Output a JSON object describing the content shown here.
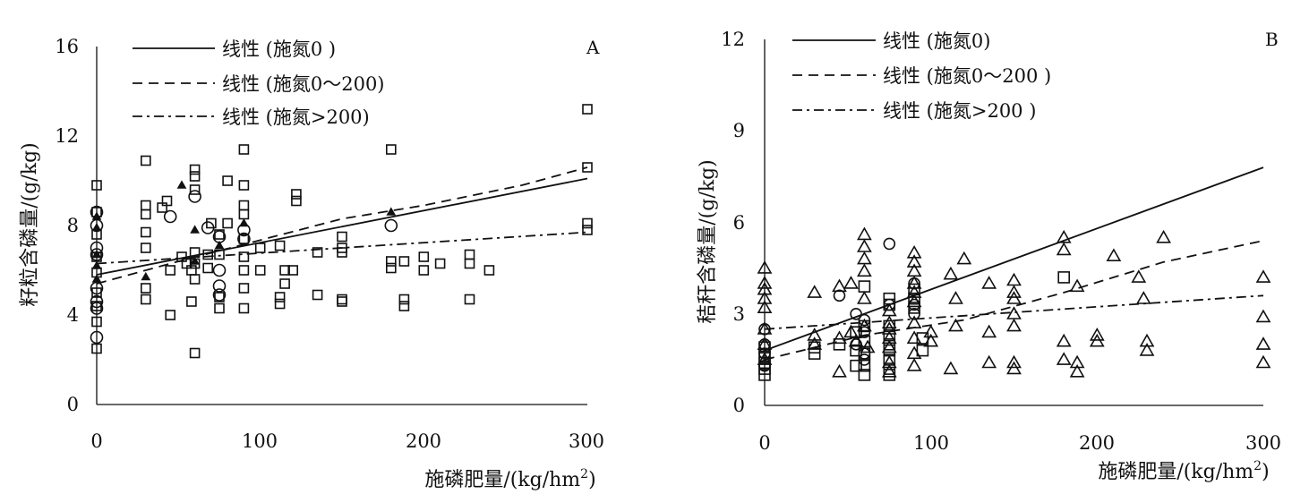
{
  "chart_data": [
    {
      "type": "scatter",
      "panel_label": "A",
      "ylabel": "籽粒含磷量/(g/kg)",
      "xlabel": "施磷肥量/(kg/hm",
      "xlabel_sup": "2",
      "xlabel_tail": ")",
      "xlim": [
        0,
        300
      ],
      "ylim": [
        0,
        16
      ],
      "xticks": [
        0,
        100,
        200,
        300
      ],
      "yticks": [
        0,
        4,
        8,
        12,
        16
      ],
      "grid": false,
      "legend_position": "top-left",
      "series": [
        {
          "name": "线性 (施氮0 )",
          "marker": "circle",
          "line": "solid",
          "line_points": [
            [
              0,
              5.8
            ],
            [
              300,
              10.1
            ]
          ],
          "points": [
            [
              0,
              8.6
            ],
            [
              0,
              8.0
            ],
            [
              0,
              7.0
            ],
            [
              0,
              6.7
            ],
            [
              0,
              5.2
            ],
            [
              0,
              4.6
            ],
            [
              0,
              4.3
            ],
            [
              0,
              3.0
            ],
            [
              45,
              8.4
            ],
            [
              60,
              9.3
            ],
            [
              68,
              7.9
            ],
            [
              75,
              7.5
            ],
            [
              75,
              6.0
            ],
            [
              75,
              5.3
            ],
            [
              75,
              4.9
            ],
            [
              90,
              7.8
            ],
            [
              90,
              7.4
            ],
            [
              180,
              8.0
            ]
          ]
        },
        {
          "name": "线性 (施氮0～200)",
          "marker": "square",
          "line": "dashed",
          "line_points": [
            [
              0,
              5.4
            ],
            [
              45,
              6.3
            ],
            [
              150,
              8.3
            ],
            [
              200,
              8.9
            ],
            [
              260,
              9.8
            ],
            [
              300,
              10.6
            ]
          ],
          "points": [
            [
              0,
              9.8
            ],
            [
              0,
              8.6
            ],
            [
              0,
              7.6
            ],
            [
              0,
              6.6
            ],
            [
              0,
              5.9
            ],
            [
              0,
              5.0
            ],
            [
              0,
              4.4
            ],
            [
              0,
              3.7
            ],
            [
              0,
              2.5
            ],
            [
              30,
              10.9
            ],
            [
              30,
              8.9
            ],
            [
              30,
              8.5
            ],
            [
              30,
              7.7
            ],
            [
              30,
              7.0
            ],
            [
              30,
              5.2
            ],
            [
              30,
              4.7
            ],
            [
              40,
              8.8
            ],
            [
              43,
              9.1
            ],
            [
              45,
              6.0
            ],
            [
              45,
              4.0
            ],
            [
              52,
              6.6
            ],
            [
              55,
              6.3
            ],
            [
              58,
              6.0
            ],
            [
              58,
              4.6
            ],
            [
              60,
              10.5
            ],
            [
              60,
              10.2
            ],
            [
              60,
              9.6
            ],
            [
              60,
              6.8
            ],
            [
              60,
              6.3
            ],
            [
              60,
              5.6
            ],
            [
              60,
              2.3
            ],
            [
              68,
              6.7
            ],
            [
              68,
              6.1
            ],
            [
              70,
              8.1
            ],
            [
              75,
              7.6
            ],
            [
              75,
              6.7
            ],
            [
              75,
              4.8
            ],
            [
              75,
              4.3
            ],
            [
              80,
              10.0
            ],
            [
              80,
              8.1
            ],
            [
              90,
              11.4
            ],
            [
              90,
              9.8
            ],
            [
              90,
              8.9
            ],
            [
              90,
              8.5
            ],
            [
              90,
              7.4
            ],
            [
              90,
              6.6
            ],
            [
              90,
              6.0
            ],
            [
              90,
              5.2
            ],
            [
              90,
              4.3
            ],
            [
              100,
              7.0
            ],
            [
              100,
              6.0
            ],
            [
              112,
              7.1
            ],
            [
              112,
              4.8
            ],
            [
              112,
              4.5
            ],
            [
              115,
              6.0
            ],
            [
              115,
              5.4
            ],
            [
              120,
              6.0
            ],
            [
              122,
              9.4
            ],
            [
              122,
              9.1
            ],
            [
              135,
              6.8
            ],
            [
              135,
              4.9
            ],
            [
              150,
              7.5
            ],
            [
              150,
              7.0
            ],
            [
              150,
              6.8
            ],
            [
              150,
              4.7
            ],
            [
              150,
              4.6
            ],
            [
              180,
              11.4
            ],
            [
              180,
              6.4
            ],
            [
              180,
              6.1
            ],
            [
              188,
              6.4
            ],
            [
              188,
              4.7
            ],
            [
              188,
              4.4
            ],
            [
              200,
              6.6
            ],
            [
              200,
              6.0
            ],
            [
              210,
              6.3
            ],
            [
              228,
              6.7
            ],
            [
              228,
              6.3
            ],
            [
              228,
              4.7
            ],
            [
              240,
              6.0
            ],
            [
              300,
              13.2
            ],
            [
              300,
              10.6
            ],
            [
              300,
              8.1
            ],
            [
              300,
              7.8
            ]
          ]
        },
        {
          "name": "线性 (施氮>200)",
          "marker": "triangle",
          "line": "dashdot",
          "line_points": [
            [
              0,
              6.3
            ],
            [
              300,
              7.7
            ]
          ],
          "points": [
            [
              0,
              8.4
            ],
            [
              0,
              7.9
            ],
            [
              0,
              6.7
            ],
            [
              0,
              6.2
            ],
            [
              0,
              5.6
            ],
            [
              30,
              5.7
            ],
            [
              52,
              9.8
            ],
            [
              60,
              7.8
            ],
            [
              60,
              6.4
            ],
            [
              75,
              7.1
            ],
            [
              90,
              8.1
            ],
            [
              180,
              8.6
            ]
          ]
        }
      ]
    },
    {
      "type": "scatter",
      "panel_label": "B",
      "ylabel": "秸秆含磷量/(g/kg)",
      "xlabel": "施磷肥量/(kg/hm",
      "xlabel_sup": "2",
      "xlabel_tail": ")",
      "xlim": [
        0,
        300
      ],
      "ylim": [
        0,
        12
      ],
      "xticks": [
        0,
        100,
        200,
        300
      ],
      "yticks": [
        0,
        3,
        6,
        9,
        12
      ],
      "grid": false,
      "legend_position": "top-left",
      "series": [
        {
          "name": "线性 (施氮0)",
          "marker": "circle",
          "line": "solid",
          "line_points": [
            [
              0,
              1.8
            ],
            [
              300,
              7.8
            ]
          ],
          "points": [
            [
              0,
              2.5
            ],
            [
              0,
              2.0
            ],
            [
              0,
              1.7
            ],
            [
              0,
              1.3
            ],
            [
              45,
              3.6
            ],
            [
              55,
              3.0
            ],
            [
              55,
              2.0
            ],
            [
              60,
              2.8
            ],
            [
              60,
              2.4
            ],
            [
              60,
              1.7
            ],
            [
              60,
              1.5
            ],
            [
              75,
              5.3
            ],
            [
              75,
              3.3
            ],
            [
              90,
              4.0
            ],
            [
              90,
              3.3
            ],
            [
              90,
              3.0
            ]
          ]
        },
        {
          "name": "线性 (施氮0～200 )",
          "marker": "square",
          "line": "dashed",
          "line_points": [
            [
              0,
              1.5
            ],
            [
              60,
              2.3
            ],
            [
              120,
              2.8
            ],
            [
              180,
              3.7
            ],
            [
              240,
              4.7
            ],
            [
              300,
              5.4
            ]
          ],
          "points": [
            [
              0,
              1.9
            ],
            [
              0,
              1.6
            ],
            [
              0,
              1.4
            ],
            [
              0,
              1.2
            ],
            [
              0,
              1.0
            ],
            [
              30,
              1.9
            ],
            [
              30,
              1.7
            ],
            [
              45,
              2.0
            ],
            [
              55,
              2.4
            ],
            [
              55,
              1.8
            ],
            [
              55,
              1.3
            ],
            [
              60,
              3.9
            ],
            [
              60,
              2.6
            ],
            [
              60,
              2.1
            ],
            [
              60,
              1.7
            ],
            [
              60,
              1.3
            ],
            [
              60,
              1.0
            ],
            [
              75,
              3.5
            ],
            [
              75,
              3.3
            ],
            [
              75,
              2.6
            ],
            [
              75,
              2.3
            ],
            [
              75,
              2.0
            ],
            [
              75,
              1.8
            ],
            [
              75,
              1.5
            ],
            [
              75,
              1.2
            ],
            [
              75,
              1.0
            ],
            [
              90,
              3.8
            ],
            [
              90,
              3.5
            ],
            [
              90,
              3.2
            ],
            [
              95,
              2.2
            ],
            [
              95,
              1.8
            ],
            [
              180,
              4.2
            ]
          ]
        },
        {
          "name": "线性 (施氮>200 )",
          "marker": "triangle",
          "line": "dashdot",
          "line_points": [
            [
              0,
              2.5
            ],
            [
              300,
              3.6
            ]
          ],
          "points": [
            [
              0,
              4.5
            ],
            [
              0,
              4.0
            ],
            [
              0,
              3.8
            ],
            [
              0,
              3.5
            ],
            [
              0,
              3.2
            ],
            [
              0,
              2.5
            ],
            [
              0,
              2.0
            ],
            [
              0,
              1.5
            ],
            [
              30,
              3.7
            ],
            [
              30,
              2.3
            ],
            [
              30,
              2.0
            ],
            [
              45,
              3.9
            ],
            [
              45,
              2.2
            ],
            [
              45,
              1.1
            ],
            [
              52,
              4.0
            ],
            [
              52,
              2.4
            ],
            [
              55,
              2.1
            ],
            [
              60,
              5.6
            ],
            [
              60,
              5.2
            ],
            [
              60,
              4.8
            ],
            [
              60,
              4.4
            ],
            [
              60,
              3.5
            ],
            [
              60,
              2.6
            ],
            [
              62,
              1.9
            ],
            [
              75,
              3.1
            ],
            [
              75,
              2.7
            ],
            [
              75,
              2.5
            ],
            [
              75,
              2.2
            ],
            [
              75,
              1.9
            ],
            [
              75,
              1.4
            ],
            [
              75,
              1.1
            ],
            [
              90,
              5.0
            ],
            [
              90,
              4.7
            ],
            [
              90,
              4.4
            ],
            [
              90,
              4.0
            ],
            [
              90,
              3.7
            ],
            [
              90,
              3.4
            ],
            [
              90,
              2.7
            ],
            [
              90,
              2.2
            ],
            [
              90,
              1.7
            ],
            [
              90,
              1.3
            ],
            [
              100,
              2.4
            ],
            [
              100,
              2.1
            ],
            [
              112,
              4.3
            ],
            [
              112,
              1.2
            ],
            [
              115,
              3.5
            ],
            [
              115,
              2.6
            ],
            [
              120,
              4.8
            ],
            [
              135,
              4.0
            ],
            [
              135,
              2.4
            ],
            [
              135,
              1.4
            ],
            [
              150,
              4.1
            ],
            [
              150,
              3.7
            ],
            [
              150,
              3.5
            ],
            [
              150,
              3.0
            ],
            [
              150,
              2.6
            ],
            [
              150,
              1.4
            ],
            [
              150,
              1.2
            ],
            [
              180,
              5.5
            ],
            [
              180,
              5.1
            ],
            [
              180,
              2.1
            ],
            [
              180,
              1.5
            ],
            [
              188,
              3.9
            ],
            [
              188,
              1.4
            ],
            [
              188,
              1.1
            ],
            [
              200,
              2.3
            ],
            [
              200,
              2.1
            ],
            [
              210,
              4.9
            ],
            [
              225,
              4.2
            ],
            [
              228,
              3.5
            ],
            [
              230,
              2.1
            ],
            [
              230,
              1.8
            ],
            [
              240,
              5.5
            ],
            [
              300,
              4.2
            ],
            [
              300,
              2.9
            ],
            [
              300,
              2.0
            ],
            [
              300,
              1.4
            ]
          ]
        }
      ]
    }
  ]
}
